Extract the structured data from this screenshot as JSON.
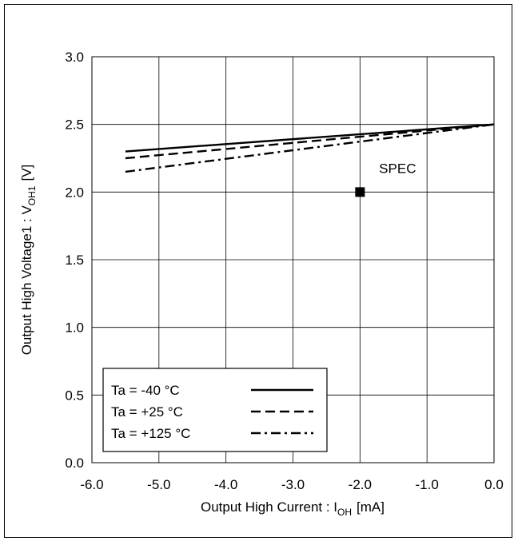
{
  "chart_data": {
    "type": "line",
    "title": "",
    "xlabel_main": "Output High Current : I",
    "xlabel_sub": "OH",
    "xlabel_unit": "[mA]",
    "ylabel_main": "Output High Voltage1 : V",
    "ylabel_sub": "OH1",
    "ylabel_unit": "[V]",
    "xlim": [
      -6.0,
      0.0
    ],
    "ylim": [
      0.0,
      3.0
    ],
    "xticks": [
      "-6.0",
      "-5.0",
      "-4.0",
      "-3.0",
      "-2.0",
      "-1.0",
      "0.0"
    ],
    "yticks": [
      "0.0",
      "0.5",
      "1.0",
      "1.5",
      "2.0",
      "2.5",
      "3.0"
    ],
    "grid": true,
    "legend_position": "bottom-left",
    "series": [
      {
        "name": "Ta = -40 °C",
        "style": "solid",
        "x": [
          -5.5,
          0.0
        ],
        "y": [
          2.3,
          2.5
        ]
      },
      {
        "name": "Ta = +25 °C",
        "style": "dashed",
        "x": [
          -5.5,
          0.0
        ],
        "y": [
          2.25,
          2.5
        ]
      },
      {
        "name": "Ta = +125 °C",
        "style": "dashdot",
        "x": [
          -5.5,
          0.0
        ],
        "y": [
          2.15,
          2.5
        ]
      }
    ],
    "markers": [
      {
        "label": "SPEC",
        "x": -2.0,
        "y": 2.0
      }
    ],
    "colors": {
      "line": "#000000",
      "grid": "#000000",
      "background": "#ffffff"
    }
  }
}
